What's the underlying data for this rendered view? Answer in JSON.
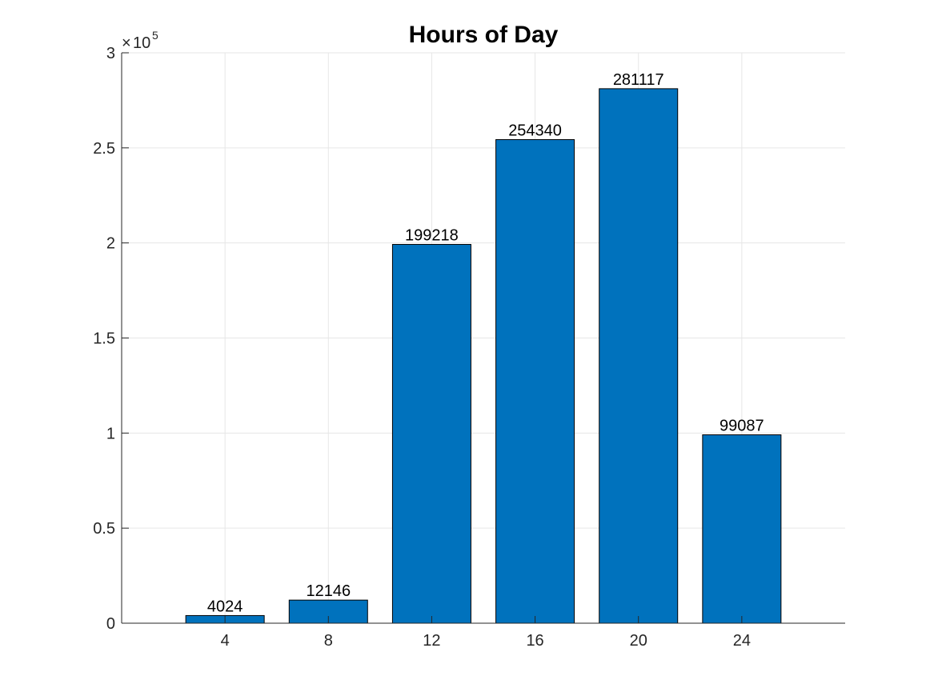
{
  "chart_data": {
    "type": "bar",
    "title": "Hours of Day",
    "xlabel": "",
    "ylabel": "",
    "categories": [
      "4",
      "8",
      "12",
      "16",
      "20",
      "24"
    ],
    "values": [
      4024,
      12146,
      199218,
      254340,
      281117,
      99087
    ],
    "data_labels": [
      "4024",
      "12146",
      "199218",
      "254340",
      "281117",
      "99087"
    ],
    "xlim": [
      0,
      28
    ],
    "ylim": [
      0,
      300000
    ],
    "y_ticks": [
      0,
      50000,
      100000,
      150000,
      200000,
      250000,
      300000
    ],
    "y_tick_labels": [
      "0",
      "0.5",
      "1",
      "1.5",
      "2",
      "2.5",
      "3"
    ],
    "y_exponent_base": "10",
    "y_exponent_power": "5",
    "grid": true,
    "bar_color": "#0072BD",
    "bar_edge_color": "#000000",
    "grid_color": "#e6e6e6",
    "axis_color": "#262626"
  }
}
